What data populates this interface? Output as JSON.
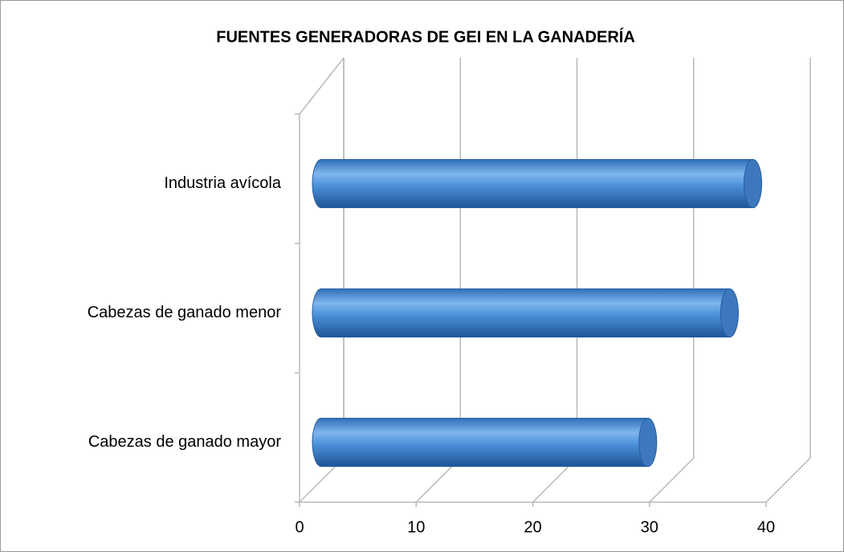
{
  "chart_data": {
    "type": "bar",
    "orientation": "horizontal",
    "title": "FUENTES GENERADORAS DE GEI EN LA GANADERÍA",
    "categories": [
      "Cabezas de ganado mayor",
      "Cabezas de ganado menor",
      "Industria avícola"
    ],
    "values": [
      28,
      35,
      37
    ],
    "color": "#4a8fd8",
    "xlim": [
      0,
      40
    ],
    "xticks": [
      0,
      10,
      20,
      30,
      40
    ],
    "grid": true
  }
}
